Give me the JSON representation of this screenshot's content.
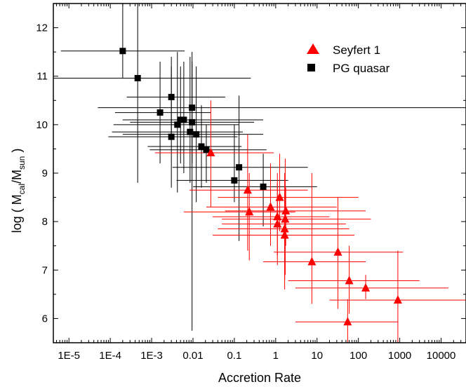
{
  "chart_data": {
    "type": "scatter",
    "xlabel": "Accretion Rate",
    "ylabel": {
      "prefix": "log ( M",
      "sub1": "cal",
      "mid": "/M",
      "sub2": "sun",
      "suffix": " )"
    },
    "xscale": "log",
    "xlim": [
      4.2e-06,
      40000
    ],
    "ylim": [
      5.5,
      12.5
    ],
    "x_ticks": [
      {
        "value": 1e-05,
        "label": "1E-5"
      },
      {
        "value": 0.0001,
        "label": "1E-4"
      },
      {
        "value": 0.001,
        "label": "1E-3"
      },
      {
        "value": 0.01,
        "label": "0.01"
      },
      {
        "value": 0.1,
        "label": "0.1"
      },
      {
        "value": 1,
        "label": "1"
      },
      {
        "value": 10,
        "label": "10"
      },
      {
        "value": 100,
        "label": "100"
      },
      {
        "value": 1000,
        "label": "1000"
      },
      {
        "value": 10000,
        "label": "10000"
      }
    ],
    "y_ticks": [
      6,
      7,
      8,
      9,
      10,
      11,
      12
    ],
    "grid": false,
    "legend_position": "top-right",
    "series": [
      {
        "name": "PG quasar",
        "marker": "square",
        "color": "#000000",
        "points": [
          {
            "x": 0.0002,
            "y": 11.52,
            "xerr": [
              6.4e-06,
              0.0063
            ],
            "yerr": [
              10.95,
              12.5
            ]
          },
          {
            "x": 0.00046,
            "y": 10.96,
            "xerr": [
              4.2e-06,
              0.25
            ],
            "yerr": [
              8.8,
              12.5
            ]
          },
          {
            "x": 0.0016,
            "y": 10.25,
            "xerr": [
              0.00013,
              0.027
            ],
            "yerr": [
              9.2,
              11.3
            ]
          },
          {
            "x": 0.003,
            "y": 10.57,
            "xerr": [
              0.00025,
              0.06
            ],
            "yerr": [
              9.8,
              11.4
            ]
          },
          {
            "x": 0.003,
            "y": 9.75,
            "xerr": [
              9e-05,
              0.12
            ],
            "yerr": [
              8.7,
              11.2
            ]
          },
          {
            "x": 0.0042,
            "y": 10.0,
            "xerr": [
              0.00012,
              0.13
            ],
            "yerr": [
              8.6,
              11.5
            ]
          },
          {
            "x": 0.005,
            "y": 10.1,
            "xerr": [
              0.0002,
              0.5
            ],
            "yerr": [
              9.2,
              11.2
            ]
          },
          {
            "x": 0.006,
            "y": 10.1,
            "xerr": [
              0.0002,
              0.2
            ],
            "yerr": [
              9.0,
              11.3
            ]
          },
          {
            "x": 0.0085,
            "y": 9.85,
            "xerr": [
              0.00011,
              0.16
            ],
            "yerr": [
              8.8,
              11.4
            ]
          },
          {
            "x": 0.0095,
            "y": 10.35,
            "xerr": [
              5e-05,
              40000
            ],
            "yerr": [
              9.2,
              11.3
            ]
          },
          {
            "x": 0.0095,
            "y": 10.05,
            "xerr": [
              0.0003,
              0.3
            ],
            "yerr": [
              5.75,
              11.5
            ]
          },
          {
            "x": 0.012,
            "y": 9.8,
            "xerr": [
              0.0002,
              0.5
            ],
            "yerr": [
              8.4,
              11.2
            ]
          },
          {
            "x": 0.016,
            "y": 9.55,
            "xerr": [
              0.0008,
              0.15
            ],
            "yerr": [
              8.7,
              10.4
            ]
          },
          {
            "x": 0.021,
            "y": 9.48,
            "xerr": [
              0.0009,
              0.6
            ],
            "yerr": [
              8.8,
              10.0
            ]
          },
          {
            "x": 0.1,
            "y": 8.85,
            "xerr": [
              0.004,
              2.0
            ],
            "yerr": [
              8.4,
              10.0
            ]
          },
          {
            "x": 0.13,
            "y": 9.12,
            "xerr": [
              0.0032,
              6.0
            ],
            "yerr": [
              7.6,
              10.6
            ]
          },
          {
            "x": 0.5,
            "y": 8.72,
            "xerr": [
              0.01,
              10.0
            ],
            "yerr": [
              7.9,
              9.4
            ]
          }
        ]
      },
      {
        "name": "Seyfert 1",
        "marker": "triangle",
        "color": "#ff0000",
        "points": [
          {
            "x": 0.027,
            "y": 9.42,
            "xerr": [
              0.0012,
              0.9
            ],
            "yerr": [
              8.3,
              10.5
            ]
          },
          {
            "x": 0.21,
            "y": 8.65,
            "xerr": [
              0.0082,
              6.0
            ],
            "yerr": [
              7.4,
              9.8
            ]
          },
          {
            "x": 0.23,
            "y": 8.2,
            "xerr": [
              0.006,
              3.0
            ],
            "yerr": [
              7.2,
              9.0
            ]
          },
          {
            "x": 0.75,
            "y": 8.3,
            "xerr": [
              0.021,
              30.0
            ],
            "yerr": [
              7.5,
              9.2
            ]
          },
          {
            "x": 1.1,
            "y": 8.1,
            "xerr": [
              0.03,
              20.0
            ],
            "yerr": [
              7.1,
              9.0
            ]
          },
          {
            "x": 1.1,
            "y": 7.95,
            "xerr": [
              0.05,
              50.0
            ],
            "yerr": [
              7.3,
              8.8
            ]
          },
          {
            "x": 1.25,
            "y": 8.5,
            "xerr": [
              0.04,
              100.0
            ],
            "yerr": [
              7.8,
              9.4
            ]
          },
          {
            "x": 1.65,
            "y": 7.85,
            "xerr": [
              0.04,
              60.0
            ],
            "yerr": [
              6.6,
              9.0
            ]
          },
          {
            "x": 1.65,
            "y": 7.72,
            "xerr": [
              0.03,
              80.0
            ],
            "yerr": [
              6.8,
              8.6
            ]
          },
          {
            "x": 1.7,
            "y": 8.05,
            "xerr": [
              0.05,
              200.0
            ],
            "yerr": [
              6.9,
              9.3
            ]
          },
          {
            "x": 1.75,
            "y": 8.22,
            "xerr": [
              0.06,
              150.0
            ],
            "yerr": [
              7.5,
              8.7
            ]
          },
          {
            "x": 7.5,
            "y": 7.17,
            "xerr": [
              0.5,
              150.0
            ],
            "yerr": [
              6.3,
              9.0
            ]
          },
          {
            "x": 32.0,
            "y": 7.37,
            "xerr": [
              0.9,
              1200.0
            ],
            "yerr": [
              6.2,
              8.5
            ]
          },
          {
            "x": 55.0,
            "y": 5.93,
            "xerr": [
              3.0,
              900.0
            ],
            "yerr": [
              5.5,
              6.4
            ]
          },
          {
            "x": 60.0,
            "y": 6.78,
            "xerr": [
              2.0,
              3000.0
            ],
            "yerr": [
              6.1,
              7.5
            ]
          },
          {
            "x": 150.0,
            "y": 6.63,
            "xerr": [
              3.0,
              15000.0
            ],
            "yerr": [
              6.4,
              6.9
            ]
          },
          {
            "x": 900.0,
            "y": 6.38,
            "xerr": [
              20.0,
              40000.0
            ],
            "yerr": [
              5.5,
              7.4
            ]
          }
        ]
      }
    ]
  }
}
